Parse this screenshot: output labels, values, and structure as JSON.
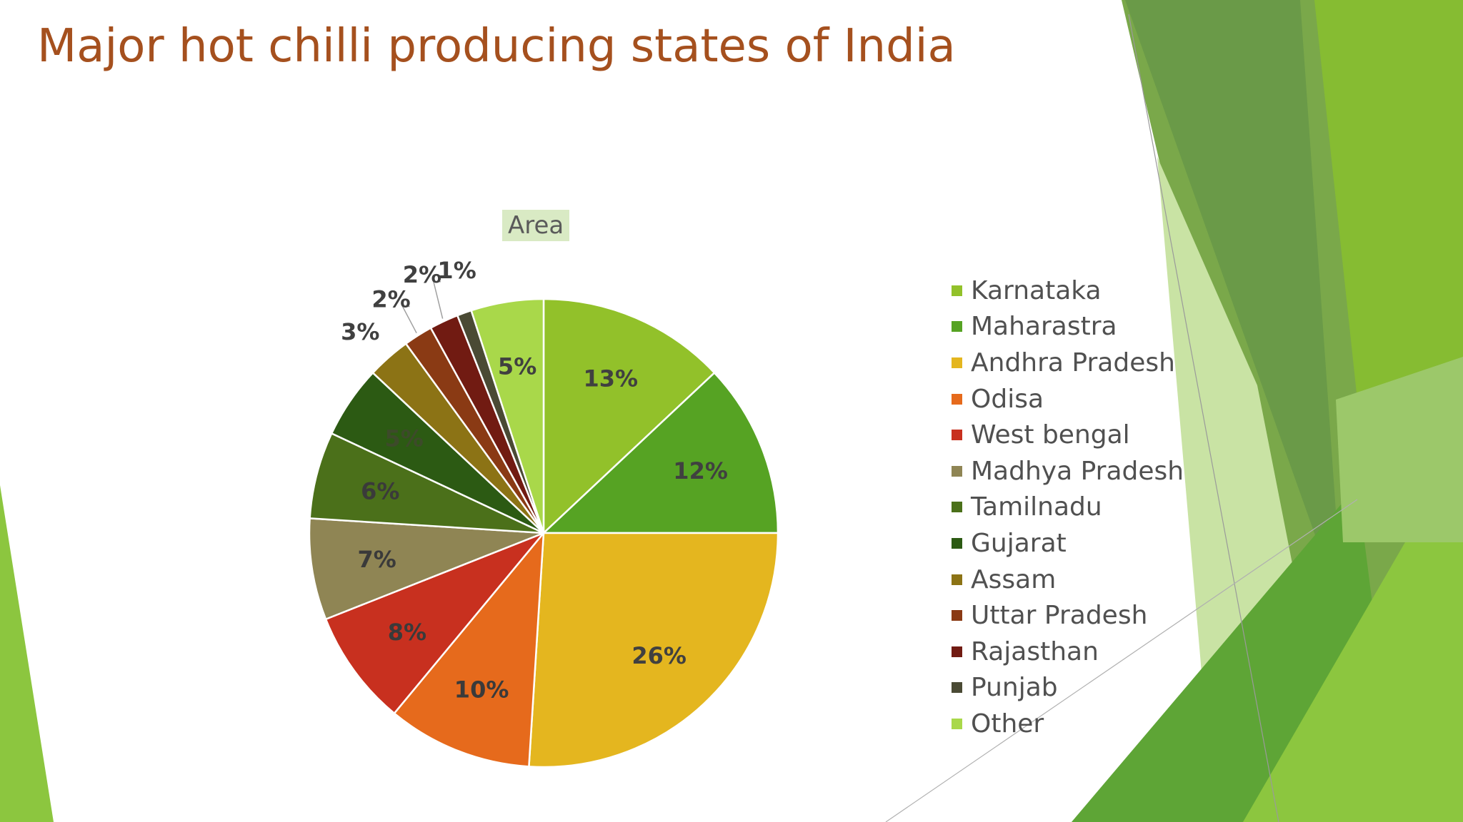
{
  "slide": {
    "title": "Major hot chilli producing states of India"
  },
  "colors": {
    "title": "#a5501e",
    "chart_title_bg": "#d9eac4",
    "deco_greens": [
      "#6e9a4a",
      "#8cbf2e",
      "#5aa02c",
      "#b5d78a",
      "#4a8a24"
    ]
  },
  "chart_data": {
    "type": "pie",
    "title": "Area",
    "legend_position": "right",
    "start_angle_deg": 0,
    "direction": "clockwise",
    "slices": [
      {
        "label": "Karnataka",
        "value": 13,
        "display": "13%",
        "color": "#92c12a"
      },
      {
        "label": "Maharastra",
        "value": 12,
        "display": "12%",
        "color": "#56a323"
      },
      {
        "label": "Andhra Pradesh",
        "value": 26,
        "display": "26%",
        "color": "#e4b61f"
      },
      {
        "label": "Odisa",
        "value": 10,
        "display": "10%",
        "color": "#e66a1c"
      },
      {
        "label": "West bengal",
        "value": 8,
        "display": "8%",
        "color": "#c8301f"
      },
      {
        "label": "Madhya Pradesh",
        "value": 7,
        "display": "7%",
        "color": "#8f8554"
      },
      {
        "label": "Tamilnadu",
        "value": 6,
        "display": "6%",
        "color": "#4b701a"
      },
      {
        "label": "Gujarat",
        "value": 5,
        "display": "5%",
        "color": "#2c5a13"
      },
      {
        "label": "Assam",
        "value": 3,
        "display": "3%",
        "color": "#8c7315"
      },
      {
        "label": "Uttar Pradesh",
        "value": 2,
        "display": "2%",
        "color": "#8a3a14"
      },
      {
        "label": "Rajasthan",
        "value": 2,
        "display": "2%",
        "color": "#711b12"
      },
      {
        "label": "Punjab",
        "value": 1,
        "display": "1%",
        "color": "#4a4a34"
      },
      {
        "label": "Other",
        "value": 5,
        "display": "5%",
        "color": "#a9d84a"
      }
    ]
  }
}
